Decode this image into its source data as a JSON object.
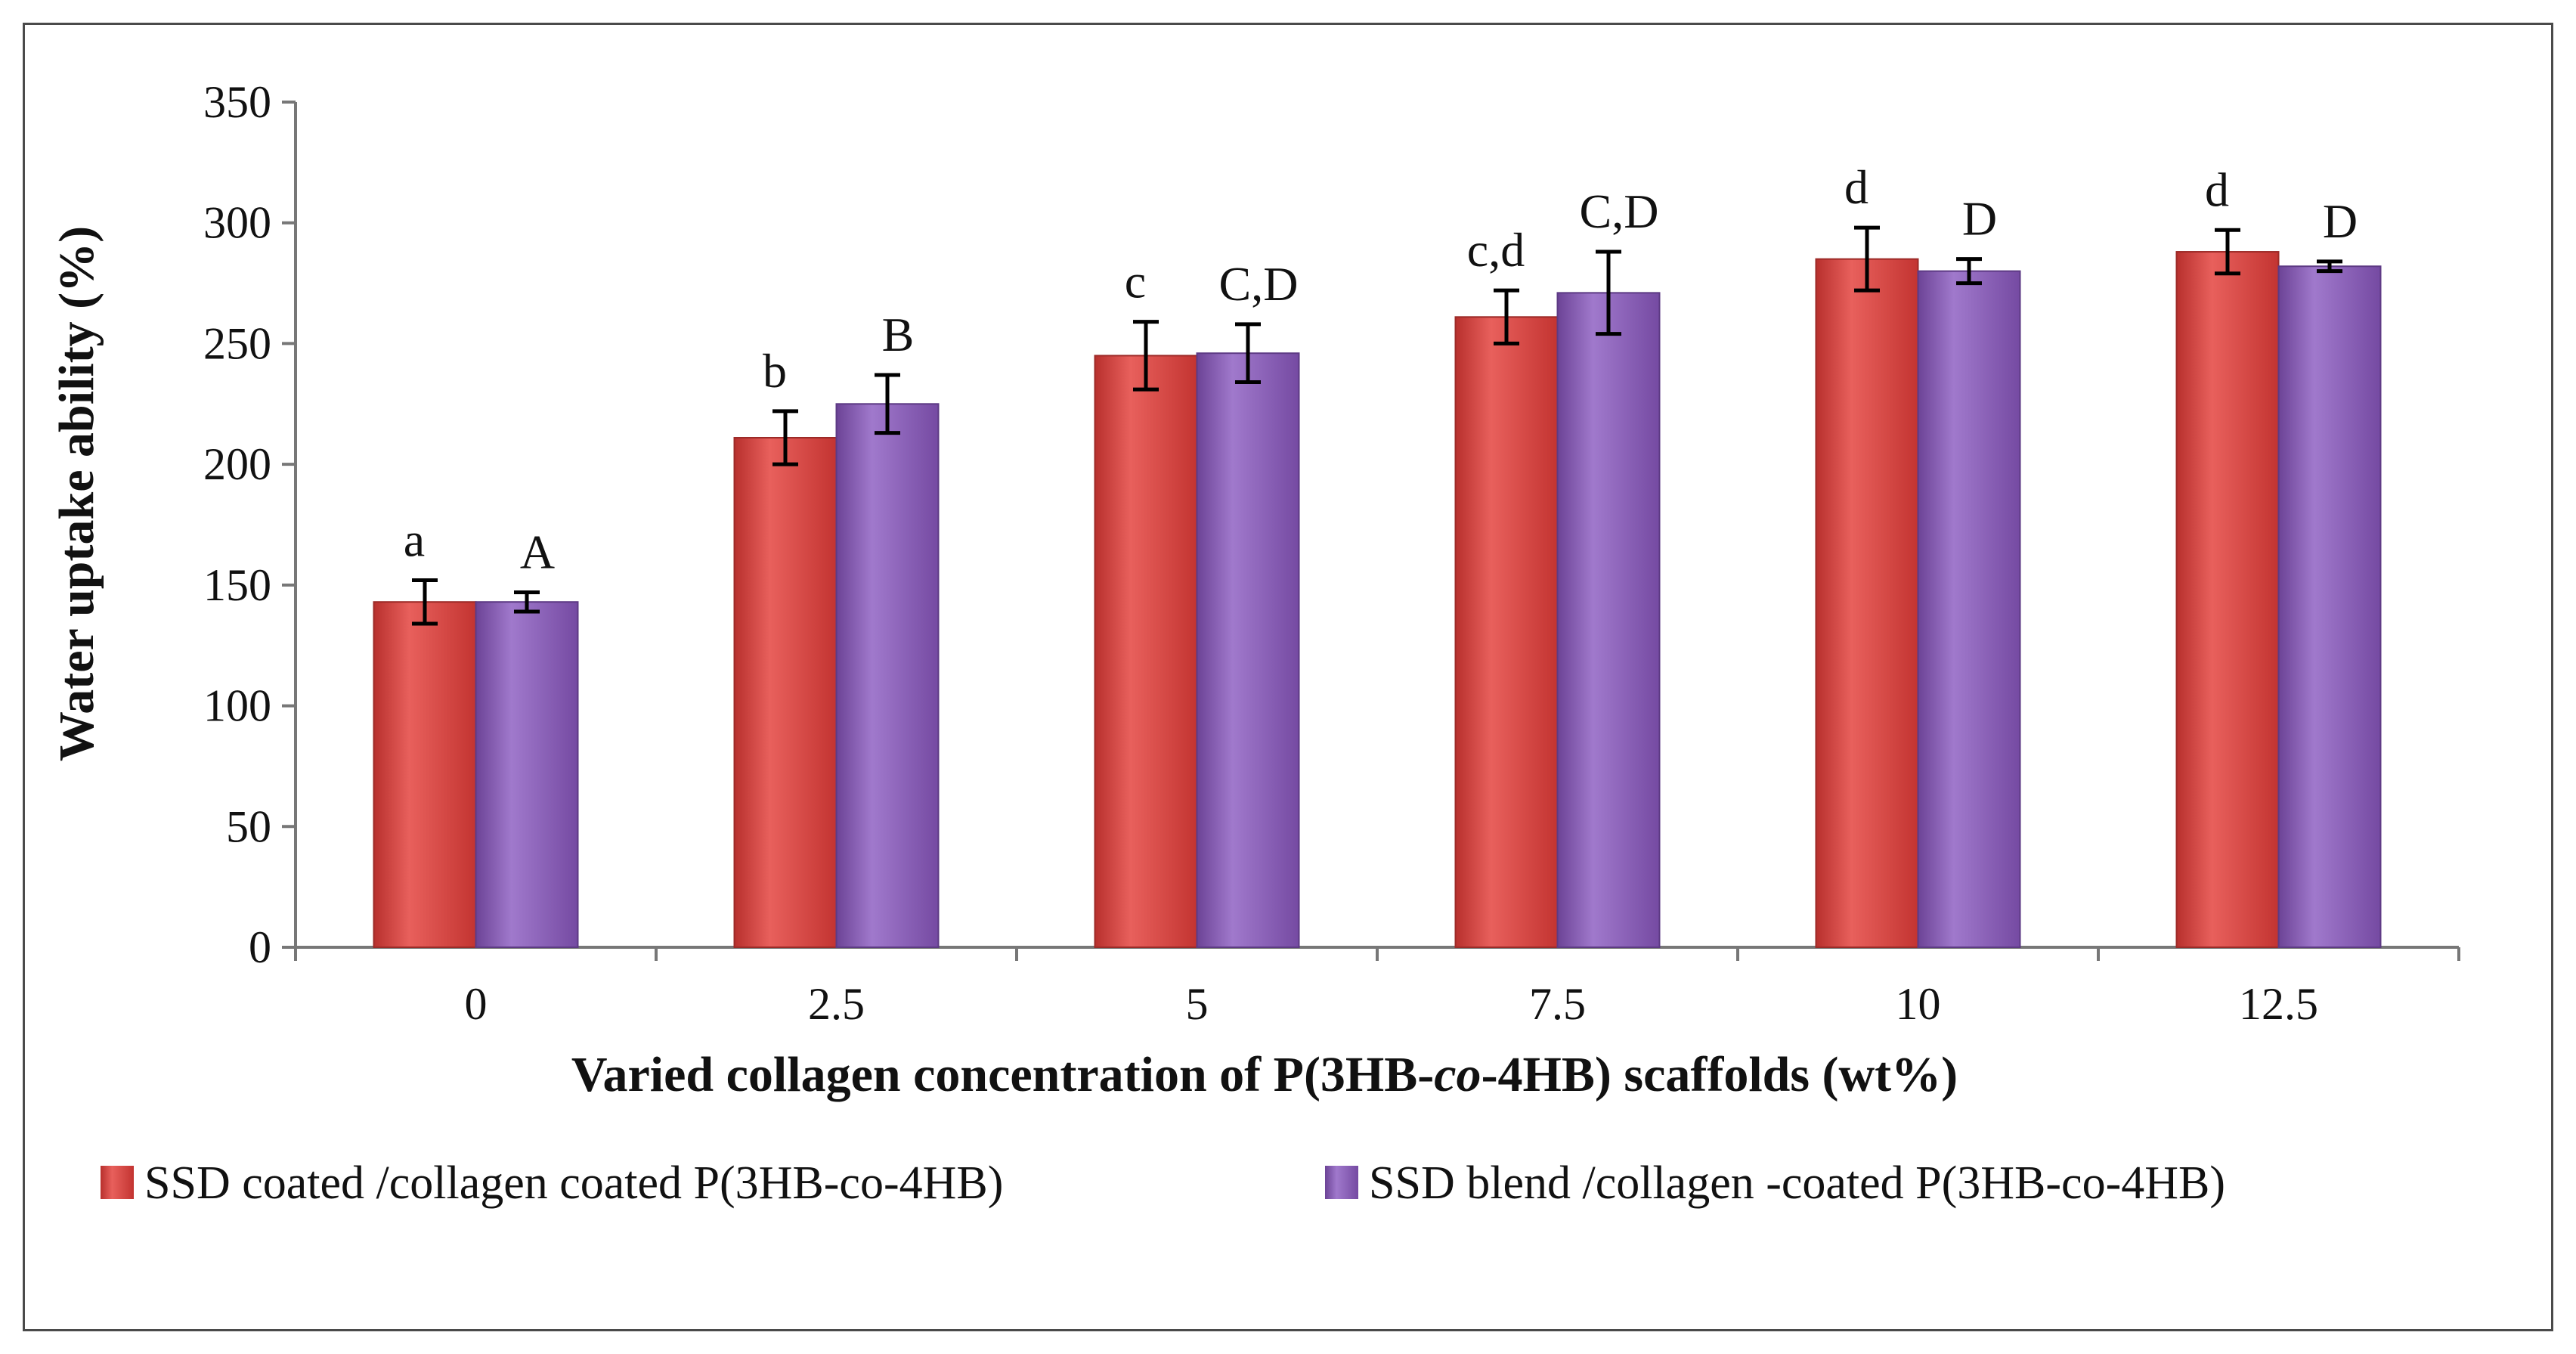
{
  "chart_data": {
    "type": "bar",
    "categories": [
      "0",
      "2.5",
      "5",
      "7.5",
      "10",
      "12.5"
    ],
    "ylim": [
      0,
      350
    ],
    "yticks": [
      0,
      50,
      100,
      150,
      200,
      250,
      300,
      350
    ],
    "ylabel": "Water uptake ability (%)",
    "xlabel_parts": [
      "Varied collagen concentration of P(3HB-",
      "co",
      "-4HB) scaffolds (wt%)"
    ],
    "legend_position": "bottom",
    "series": [
      {
        "name": "SSD coated /collagen coated P(3HB-co-4HB)",
        "color": "#d9413e",
        "values": [
          143,
          211,
          245,
          261,
          285,
          288
        ],
        "errors": [
          9,
          11,
          14,
          11,
          13,
          9
        ],
        "labels": [
          "a",
          "b",
          "c",
          "c,d",
          "d",
          "d"
        ]
      },
      {
        "name": "SSD blend /collagen -coated P(3HB-co-4HB)",
        "color": "#8a5bb8",
        "values": [
          143,
          225,
          246,
          271,
          280,
          282
        ],
        "errors": [
          4,
          12,
          12,
          17,
          5,
          2
        ],
        "labels": [
          "A",
          "B",
          "C,D",
          "C,D",
          "D",
          "D"
        ]
      }
    ]
  }
}
